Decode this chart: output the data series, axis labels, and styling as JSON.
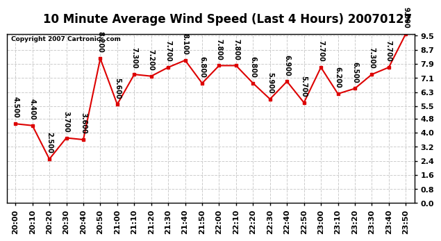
{
  "title": "10 Minute Average Wind Speed (Last 4 Hours) 20070127",
  "copyright_text": "Copyright 2007 Cartronics.com",
  "times": [
    "20:00",
    "20:10",
    "20:20",
    "20:30",
    "20:40",
    "20:50",
    "21:00",
    "21:10",
    "21:20",
    "21:30",
    "21:40",
    "21:50",
    "22:00",
    "22:10",
    "22:20",
    "22:30",
    "22:40",
    "22:50",
    "23:00",
    "23:10",
    "23:20",
    "23:30",
    "23:40",
    "23:50"
  ],
  "values": [
    4.5,
    4.4,
    2.5,
    3.7,
    3.6,
    8.2,
    5.6,
    7.3,
    7.2,
    7.7,
    8.1,
    6.8,
    7.8,
    7.8,
    6.8,
    5.9,
    6.9,
    5.7,
    7.7,
    6.2,
    6.5,
    7.3,
    7.7,
    9.6
  ],
  "line_color": "#dd0000",
  "marker_color": "#dd0000",
  "bg_color": "#ffffff",
  "plot_bg_color": "#ffffff",
  "ylim": [
    0.0,
    9.6
  ],
  "yticks": [
    0.0,
    0.8,
    1.6,
    2.4,
    3.2,
    4.0,
    4.8,
    5.5,
    6.3,
    7.1,
    7.9,
    8.7,
    9.5
  ],
  "title_fontsize": 12,
  "label_fontsize": 8,
  "annotation_fontsize": 7,
  "grid_color": "#cccccc",
  "grid_linestyle": "--"
}
